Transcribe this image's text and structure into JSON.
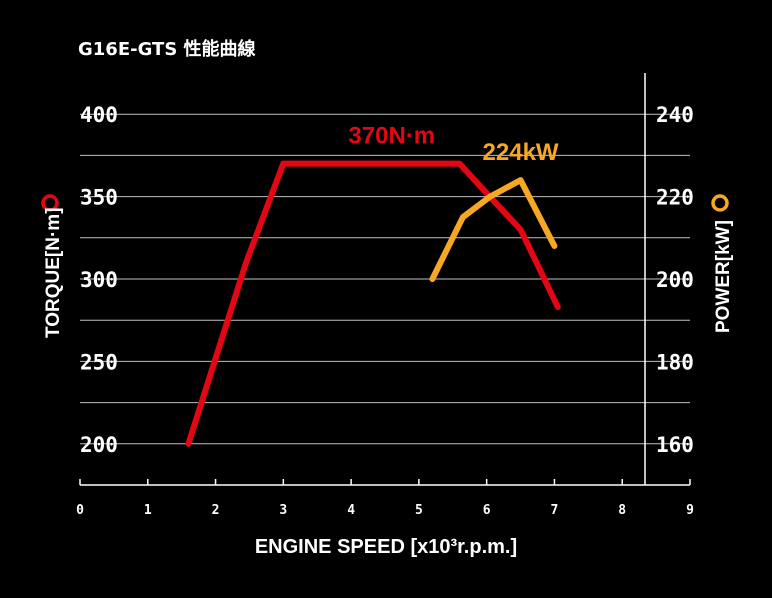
{
  "chart_data": {
    "type": "line",
    "title": "G16E-GTS 性能曲線",
    "xlabel": "ENGINE SPEED [x10³r.p.m.]",
    "xlim": [
      0,
      9
    ],
    "x_ticks": [
      "0",
      "1",
      "2",
      "3",
      "4",
      "5",
      "6",
      "7",
      "8",
      "9"
    ],
    "y_left": {
      "label": "TORQUE[N·m]",
      "range": [
        175,
        425
      ],
      "ticks": [
        "200",
        "250",
        "300",
        "350",
        "400"
      ],
      "tick_values": [
        200,
        250,
        300,
        350,
        400
      ]
    },
    "y_right": {
      "label": "POWER[kW]",
      "range": [
        150,
        250
      ],
      "ticks": [
        "160",
        "180",
        "200",
        "220",
        "240"
      ],
      "tick_values": [
        160,
        180,
        200,
        220,
        240
      ]
    },
    "grid": true,
    "series": [
      {
        "name": "TORQUE[N·m]",
        "axis": "left",
        "color": "#e30613",
        "x": [
          1.6,
          2.45,
          3.0,
          4.0,
          5.0,
          5.6,
          6.0,
          6.5,
          7.05
        ],
        "y": [
          200,
          310,
          370,
          370,
          370,
          370,
          352,
          330,
          283
        ]
      },
      {
        "name": "POWER[kW]",
        "axis": "right",
        "color": "#f7a823",
        "x": [
          5.2,
          5.65,
          6.05,
          6.5,
          7.0
        ],
        "y": [
          200,
          215,
          220,
          224,
          208
        ]
      }
    ],
    "annotations": [
      {
        "text": "370N·m",
        "series": "TORQUE[N·m]",
        "x": 4.6,
        "y": 370
      },
      {
        "text": "224kW",
        "series": "POWER[kW]",
        "x": 6.5,
        "y": 224
      }
    ]
  }
}
